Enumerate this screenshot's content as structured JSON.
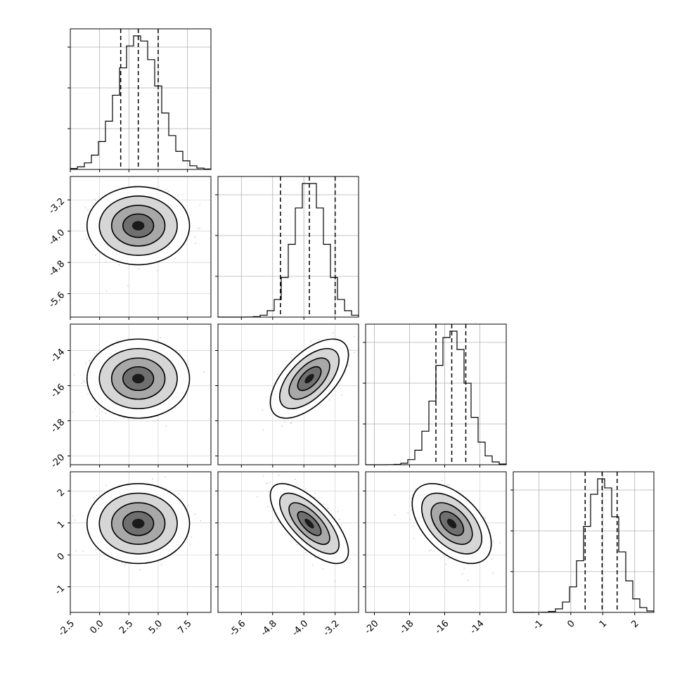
{
  "chart_data": {
    "type": "corner",
    "parameters": [
      {
        "ticks": [
          "-2.5",
          "0.0",
          "2.5",
          "5.0",
          "7.5"
        ],
        "tick_values": [
          -2.5,
          0.0,
          2.5,
          5.0,
          7.5
        ],
        "range": [
          -2.5,
          9.5
        ],
        "quantiles": [
          1.8,
          3.3,
          5.0
        ],
        "mean": 3.3,
        "sd": 1.75
      },
      {
        "ticks": [
          "-5.6",
          "-4.8",
          "-4.0",
          "-3.2"
        ],
        "tick_values": [
          -5.6,
          -4.8,
          -4.0,
          -3.2
        ],
        "range": [
          -6.2,
          -2.6
        ],
        "quantiles": [
          -4.6,
          -3.86,
          -3.2
        ],
        "mean": -3.86,
        "sd": 0.4
      },
      {
        "ticks": [
          "-20",
          "-18",
          "-16",
          "-14"
        ],
        "tick_values": [
          -20,
          -18,
          -16,
          -14
        ],
        "range": [
          -20.5,
          -12.5
        ],
        "quantiles": [
          -16.5,
          -15.6,
          -14.8
        ],
        "mean": -15.6,
        "sd": 0.9
      },
      {
        "ticks": [
          "-1",
          "0",
          "1",
          "2"
        ],
        "tick_values": [
          -1,
          0,
          1,
          2
        ],
        "range": [
          -1.8,
          2.6
        ],
        "quantiles": [
          0.45,
          0.98,
          1.45
        ],
        "mean": 0.98,
        "sd": 0.5
      }
    ],
    "correlations": [
      [
        1.0,
        0.0,
        0.0,
        0.0
      ],
      [
        0.0,
        1.0,
        0.6,
        -0.7
      ],
      [
        0.0,
        0.6,
        1.0,
        -0.5
      ],
      [
        0.0,
        -0.7,
        -0.5,
        1.0
      ]
    ],
    "histogram_bins": 20,
    "grid": true,
    "quantile_lines": "dashed"
  }
}
